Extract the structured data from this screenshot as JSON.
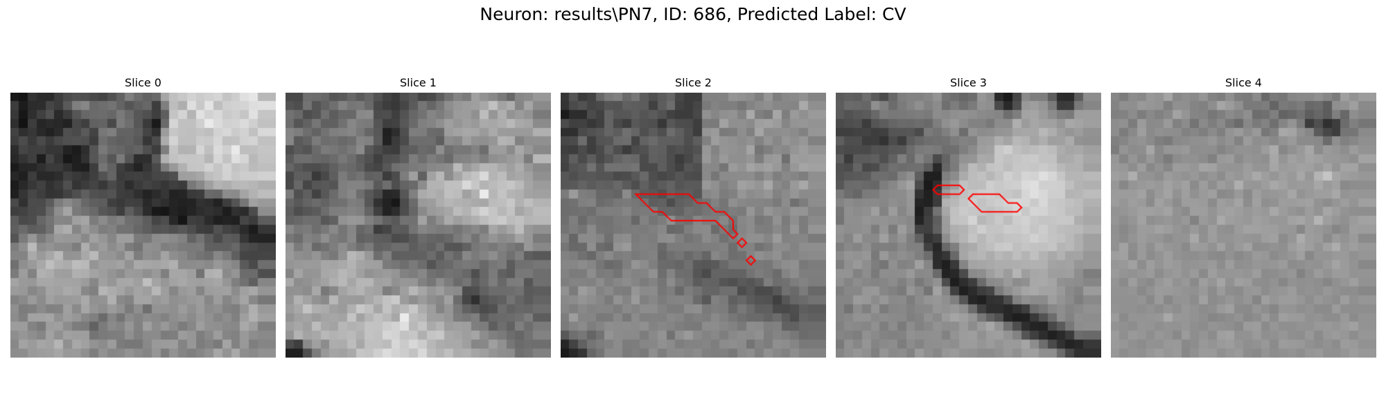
{
  "figure": {
    "title": "Neuron: results\\PN7, ID: 686, Predicted Label: CV"
  },
  "contour_color": "#ff0000",
  "slices": [
    {
      "title": "Slice 0",
      "rows": [
        "1814332b2a3d4b514e494451627f6d6269a7c0c8d2cbd0d5c4cde0e6b8",
        "3c1c2c2d463c5a7f87696e73645560673d7fbdaedfc8e4bfcfd2d4dee0",
        "38172f40512a3c56676b6c677a6a57503f5ec4d4b4e1d2d9cacfc6e1c5",
        "2f123d262b2822493f6163497c6f573a1a6ad5c0c0cfeadbd1d3dbcfc1",
        "422f3729212b4f4a5a43787f63635d45309cc6c0bec3bed2d8cbd2c1d9",
        "3d4c3a4a3b4950524f3d6f645f6258364cacd4bebecbc9d6c0c2d1d4c1",
        "2c453f403636231c2d55796a665e634f3d7ec5b2b3d5c0dbd0e9bebfc5",
        "28343f1d4532181f31566c567a552d2e5ab1c2c7c6c7b6d6c3dfd5b8c3",
        "1b2627303a3a2f201e3e75623e322336497d99b1c5c6d2c5d4c3c8bbbf",
        "271f3d28282d4039333f52643b3f413d46484f9fa0a7bec4d2c7cdcdd1",
        "1b293741313a4f343c44384a3e2d3b433d363f3b7888a0b3aeb8b9b6af",
        "1f35473e3335424f5f514e533e3b2f232c3622253a3d6a678c8aa4b2bd",
        "4a314c4b5c7c8a7d685f5d3f39413f29362e242123322e223d5476a19a",
        "3f424b4e6a8ea57a726957513e5e4a2c1916231e242d322d1d312b4c8e",
        "5c4a4d67748685a0a57c8c7b836f6b5d454d28153f3c2b1f2320463c5d",
        "5f6b5d6072a6ae869c8d7d827272675e53554f574d3e3b51433c2b1c36",
        "557b967a8a9a979889a196869e9e7b788c8f8a8263735c4a5c58362423",
        "7d8fba8d938b8b7dae919c8c977c73908e7f827b7a7b605f5f684d4942",
        "8484aa9aa7b99394a8b996958ba37d8f8ba38e887b746e87795f454445",
        "708f9aa8bfb0acbdb9959f9ea392a9a6a4a8b08b8c8e89988f865a4a6e",
        "7b9d82b1ad9f9eb0aea39d948b9a998f997fa6a69f73b0b48a956c6c4e",
        "a49a98a7a7a4a4a39c87a096a7a89fbfa397a3a8a19fa2a6967f715f86",
        "9b988790a4a1aaa68880b5aca598a49eb79e86999e859d9fa18ca0a895",
        "828a9b8ca1999a9caa9193b08983a4a4989d9093999c879c8694a58877",
        "8f7c7f8b8183a08aa6958e9b917b8e6f93928f9c909b8c90827e94af99",
        "8c7fa2a2a5919e9788806b86748b838c89828e948b9891858e809fb1a0",
        "9d9c837a9d9f8d7d7a627b8a8496829f8c988b7c879e918f8988a99d80",
        "8e968e86a291a19e9e747a7d7e90808b8b7c7e9c967e899d8582998d89",
        "88a39ba6a2b590a8a1938c9c7b777789999b9d84977c837aa482997e85",
        "8d8d9a9d9fa6999a907e928789938b85967d92857f868fa794aa8e8a91"
      ]
    },
    {
      "title": "Slice 1",
      "rows": [
        "48486e6d67565a675a6653433a4e58454a5d71837ba092897a68878b98",
        "544e7355616f83767969483d38465b7566778e989c9fa8c1a3ae85a58a",
        "72694e55705d6868898b4d4e3f536772857d899b9c90bc96af939b937a",
        "6e556276606071877c7a553f42586a80848f9f969e99aaa7adb9a9a58b",
        "857e6e63727f8286786658202e4f7e7d6b699da3a8a69aaa9b9a9a9ab0",
        "865a627b6d70696e85815a223b4b6d6d6e5e8c879f918f96b4b0828f90",
        "4e5b546a7b7770798b594b3f3c5a5e6a678f707877826d9d9d8ba89788",
        "5a6e6e68656b786d5c513f4f525f7d6e7d756a82848b7e8f939aa17cb8",
        "65584e4d53606c695f4a455770757a7e878a8dba99a6b6b4a99fad978a",
        "485e5d3a495e7b6c7360633c4c7d9f60a2b88ca5bac3d9b4bda3a8a190",
        "4967465659557f83837b5a6e4e646a8db3b3bfc0d9c7b4bbc1c6baa59b",
        "7c505f42586b7f886e594a272a5780abb1abc0bca1b1ebb6c4b4b0a3a0",
        "6559646b636f717e7b573122174c6b9a9dadb6b1afaaa7bcbec8b1bfb3",
        "5e4e565b6d7e7f84806440222d4d668a9a9fa6bcb3c4d3c5b7c3a5b0bb",
        "63686f6e5861929896817361597271a37d91ab9ea8b0bcc5cbbcc1b5b8",
        "88787b6e79897586666e3d455c5a7486807b7e7580897ca69aa7bd9891",
        "776d827d8f7c768761655d5b4b4e5b6b6562687a877389958b8fa3977a",
        "977b8b69717e8e7e6f7b61656d6c5d66606f565461777e788279719788",
        "9a8e8b94817891b8ae986e805e6060616c5b7366877b838e7d707f5e58",
        "95999b9aa6a5a9b3a4a09f7b766e7a6d54666975797769777c5c707176",
        "84a49495a7aab7b0a092979b95827d87716c7370684f677b615a78786e",
        "a98d919aa2afb8a6b6b6a1a391979681768c7c6b755b697d687c7d566f",
        "91928ca87887a3aeb4a6a27e889fb7a5959e8e8b4c4f616c6c6d725a5d",
        "96b2a3928ab79c9b9aa7b4c2ca9c8e9b8e87a16c4630535c6074665b64",
        "9da8c3afab9f9bb0c9bfa6c3afb9c8ac9d84957862574b516d6268666d",
        "93a0a49ba4a6a3c4a2b4c1b8a7ebbcb69e9d967c777f5b686a6c707d5d",
        "a0a79fbca7a3b7b1b5c3c2cdd3dfb8c5aab49ca09e7f7c5e6e627f6e7b",
        "94b3a3a8b8b2b6baafc3c0d6d3c2c6b0c4c8a9a59ea58d807a6d667282",
        "4c3e8aa08cadacbda7c0c0bbd7cad8ccb7aca9a99f86889f90766b6f6e",
        "1e1e4e7c98a4a1a9c6c3cfdcd3cdc2d9bcb3bfadb0a69f958f8d707581"
      ]
    },
    {
      "title": "Slice 2",
      "rows": [
        "37553c43687a8069775c505b65473c3d81818295918c7f967e888a9084",
        "344b5245495553605d5c415d6d423c467a837e7f76838b8f878685aa8f",
        "1b2d2c4b416456575e555b52423c3c489186909383a97f78a67e9a909a",
        "4c4041373f64493e58524f37574d4c3e7b7aa28f908b9fa29c86949693",
        "2e2f4a5157655d70654f5c4f6d5f4f3d969b7a7d8e80a58c8e908b8196",
        "484b6d3f54566b6d43636b5f5f5d4e5e819e94918c92839487968f9781",
        "3f3d4b3e4a614e3c4d51615f4c514b52978395928fa4757f8c88959d94",
        "455f4b5d4955646c684b605d4d3c485a99889a8f8f957e989b6f9e9c9e",
        "4254597255727271754a4a5e4d41554f8988759b93a49ca2988198a5a1",
        "574f575854544a4c58694e474c554d4b8a768b8b8c8d81907f89857e8f",
        "5759635b615f685b4e60535b63555a5a98908189a19c95a88a8299a891",
        "7b9b7e7b6868648b6b5c5950635b5e56878d7c81968c9096828b968b8b",
        "6d7180836b70787a77725e614d60646c73827590888585837a8c707d8d",
        "6d6f726e7d7f7e86787b7b666763716d757a757d7a9683968d88959484",
        "6f7f6a7873727a7c6782757d8f7470877d7d8774878c777c927b8e7c8a",
        "747d758a7573787c7d7b8088686b7e8a8b6b7b6c858c7e7d897e967c95",
        "81668b8b84708b8e7b807d8d8f80747a8b83717b889090869b8285867b",
        "76686a8f6c67939a7e817f697b7c7d7c7e7e826e8283727a8d8c838e8e",
        "817d71687f8a7d80797f82656f75697365877f6e7184908a918084898b",
        "86868c86766a6e7f958c7f6b6a657059575a697676797977868e90787c",
        "827b7c8d7b7d74888384916e846e6d564b64646363737d776c848d7e7e",
        "7e8483818c7f878c857c83758c79705c6462554f5a555e7e6e717d837d",
        "917b9d94838a7e7c958a8b777e697d7366656f6f4d574a4b58716a7b68",
        "898c948e877b92859b80877c8384826b58817a60675b54524057676b73",
        "867f898385847d8a848d8d837c7c8d8f7a7e7c68786c5e5f4a494e5e5b",
        "7d9d8585797a88788b7f818088857b807d898177706a6a636c5b4c6460",
        "7a848b7e858e8c8d8b908387847e7a798c8c8782798d8b7f8162626b6c",
        "586f776573938c8a8a7d8993728f9a8a83887e898d8b907d8480786b6e",
        "264361757d828c7c7d8687908b7e8383857e8c8e8b74837d8f8d857979",
        "1a283567748b8b7b7f7a8e7e8a8b878c817f80798a8e809088828e8483"
      ],
      "contours": [
        [
          [
            8.5,
            11.5
          ],
          [
            14.5,
            11.5
          ],
          [
            15.5,
            12.5
          ],
          [
            16.5,
            12.5
          ],
          [
            17.5,
            13.5
          ],
          [
            18.5,
            13.5
          ],
          [
            19.5,
            14.5
          ],
          [
            19.5,
            15.5
          ],
          [
            20.0,
            16.0
          ],
          [
            19.5,
            16.5
          ],
          [
            18.5,
            15.5
          ],
          [
            17.5,
            14.5
          ],
          [
            12.5,
            14.5
          ],
          [
            11.5,
            13.5
          ],
          [
            10.5,
            13.5
          ],
          [
            9.5,
            12.5
          ]
        ],
        [
          [
            20.5,
            16.5
          ],
          [
            21.0,
            17.0
          ],
          [
            20.5,
            17.5
          ],
          [
            20.0,
            17.0
          ]
        ],
        [
          [
            21.5,
            18.5
          ],
          [
            22.0,
            19.0
          ],
          [
            21.5,
            19.5
          ],
          [
            21.0,
            19.0
          ]
        ]
      ]
    },
    {
      "title": "Slice 3",
      "rows": [
        "5b605d6d5a4b687f83828794756e666d968c2a1944897e7e5d2c2b5d8d",
        "5d6b69668f806c7b848f828b6f7d6f7b928f4a294f999e957a3b3c7986",
        "5b52585b687b78797b7d7a8c898f928f8a88856e7ea3a59a8c7d799d9e",
        "4a4e513c555c656a696d697e90988c8282798c8caf9ba6a1a095a8a49f",
        "3f3f42443d405555564b7a737f8f6d938c8e9496a5a7a7b8ad9e959c92",
        "5e4e4e3c3d334c3c5d676e70727c83809b9caea4b8b3a4ae9fa0ab9290",
        "4e4a4b4a535058596c7a7d7a6e6f7f8b9ea2c7cfbfb9bdc2bcaca5a8a0",
        "5e3b5b5b5f4f627f6a85744a637d9395aaa8c7c0c5c9cac2c2a9abb2a6",
        "504c64484c63706c6f705d29677b9ebbb1c3c6bdc7c8c6cac5b8b1b1a1",
        "52585a5c6e6e6b848f5f201f7f8cabbcc1b7c2d0c8d5d2dfd6c6b5b5b9",
        "576b6c69677d8797a44c1a2e8b9ec1bcbdcec8cdcfdbdfcfd0cebfb3b0",
        "7a6d667b7c888b8c9832203c9cb2c0c6cccec9c7c2d6dfd8ceceb4b6bc",
        "848c87898a878f8b9624213bb2b8c5cec2c9ced3d9d6cad8c8c6c1bcb1",
        "76908c8f9f839c86941e3b73a7c1cac6c5c1c7cdd6c8d5d3cac7bdbbab",
        "748f8f959293908d8824405d9dc1c4d4b7bfc9bdcdd2c8c4c5c8c7aea7",
        "928d8e917d957b9d8a4240619cafb3c1cec4c4cccacfc5cdc3bdbbb9b0",
        "8f849c8a89a088947f61333e8eaab5c5b8c3bec3c4c8d1cac4c1b9aea0",
        "7d89848f7e7f7e8980804127697fa5abb9bfc9cbbfc5c2c1c5b5b9aea0",
        "8a9592977999898f8a7f6d2c3669a6b2b6acb8b2beb4c0b3a9b2a3a497",
        "7e90998e7e75908285a0862c1f3985a4a6a9adadaeb0b1b1a3a1a39698",
        "9393828d7a8e8d8e99898a6a22284b8a8e9ea99cb59ea7a99e9d9f8e7d",
        "8f848d8784868c808d7986924d1e2e3e6b8a8d9a8c90a8a9a4918f8d86",
        "7e8787969986817a968a74a28440202c3d457b8e9aa5a9a2a2998a839b",
        "85859b988c97898b7d8b94978f7f56262031334d82908b8b9e948b7e89",
        "84738d7f947b86888187889592978e6c402e2e27313e6e79888e858a91",
        "84889292898d8a897f8391899aa59f94786050271e2039536d8d828f8d",
        "818b8986907e8c7b8d8288928d8e9b8c9ba793704e2e2422485b788d8f",
        "85827e918a838183918e8f9082939c9e919d9f9483553f2d202a3b6c69",
        "7a908795848a8d7d8c848e8f918e9b9c959b949a9aa58d6e4a31232838",
        "868f969080958a8d839b8f88979b93918c8c9199919e9f8f8e6b47302f"
      ],
      "contours": [
        [
          [
            11.5,
            10.5
          ],
          [
            14.0,
            10.5
          ],
          [
            14.5,
            11.0
          ],
          [
            14.0,
            11.5
          ],
          [
            11.5,
            11.5
          ],
          [
            11.0,
            11.0
          ]
        ],
        [
          [
            15.5,
            11.5
          ],
          [
            18.5,
            11.5
          ],
          [
            19.5,
            12.5
          ],
          [
            20.5,
            12.5
          ],
          [
            21.0,
            13.0
          ],
          [
            20.5,
            13.5
          ],
          [
            16.5,
            13.5
          ],
          [
            15.0,
            12.0
          ]
        ]
      ]
    },
    {
      "title": "Slice 4",
      "rows": [
        "867c8c889894a5888e8a95837d8e7d7a8b697a7686898990877b9f929c",
        "83908f99969380908f84818ea69c907a7a7d647a767c696c5d8f929f8a",
        "80828c7d898189a2958583777f8b848f6d707f6368715e675c7f688e87",
        "8d917c9b8a8b9a818c738a7e8a776b887a836f85947b3c50303d6c8076",
        "8d7c899e8a918e8d81867e8b7f949b8e997781a8a491875b483d75758a",
        "808690938b7f7a898c9090978c93839b8e9189939a8b8b896b8e81878f",
        "7c948c8ea6899696998d8f8e848c9292909cab879199a78c9a958e9c93",
        "9685958998897b8c91918c81999c8b95928fa895a19ba4a09998958fa3",
        "99978d9d8892879c9b96a4a29594949d9494a69b9ea2a098a394a4a390",
        "9f9cae93938d9b9692988f958c9b969ea99e969f99a797b4c5a69e9b97",
        "978795999c98a29aa18b9d8e9d96ae97969da8a2999b9ba79ba18a8d8e",
        "9b9c9ca28d9aa3929f919a9f898c998a9e95979aa6939a9e9ea8949796",
        "9c969e9a8ba1988c9d9d9b8b9e99a48da08f929d9c9fa1938d959d94a0",
        "93959aa0a09da3928b9e9e949ea29d979c98a89c95909c93a69d938f8e",
        "958e95a28f93969198829a93aa9e9b98a09c9797a2a69cb49e96909ba2",
        "9088909c9ba29d958f998f9e918f9ba2a19f9e9897879c9892868d9e9c",
        "918b949c97958d9394a8909d93949895939ea18c96ac9d9a8b9a939b8a",
        "91a28d9a8f9d96938a9c9b92a1919aa28d8e928f9da59e94a1ad989e98",
        "9ea18a9a8c939d928f8e928b8992898f9a978b9196a0889594999a9196",
        "9699a18d9e949d999294969a8d9d8f919694969b8c8f939199a49b9388",
        "9a9492969b8d969a929a8a9e949697949d8c8d9296828f9b939b9b9394",
        "948a9d8f8a979e92988a9e95a591a09c8e8d9286928f918e8690969f92",
        "92929489929b9a979391998c9b8d8b96988d94969c8f928f97918d8d87",
        "91919194899a8893948ca08c8f968f95859f969c9c978e98928d9e9096",
        "9391918e928c948e97928c8f9aa08b8a958e8695948e928b8b9b8e8e8e",
        "9b8a94949597a89796928e86898d93888d9a8c9f9b9a91938d8d998b93",
        "93908d95948f9392968f8c94918f899b9d8b968f8f93929899959ba193",
        "9b8f99968e9793899b8e948c9fa291929a8f91968f8d988b979b978d96",
        "9a96908c92919899898d98949a9d958f92988b9c9a98918d928c9c9a92",
        "978d9290979c969a88919b9a90969a8d8a948d90938e96999090959d98"
      ]
    }
  ]
}
